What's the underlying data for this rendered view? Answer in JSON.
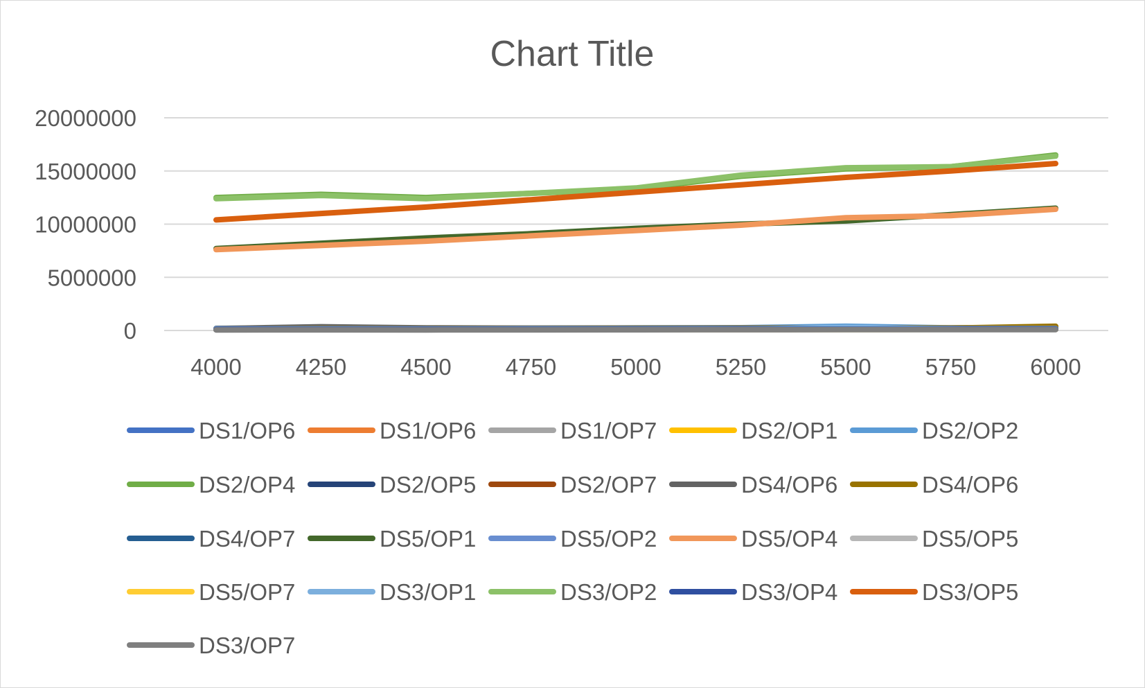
{
  "chart_data": {
    "type": "line",
    "title": "Chart Title",
    "xlabel": "",
    "ylabel": "",
    "x": [
      4000,
      4250,
      4500,
      4750,
      5000,
      5250,
      5500,
      5750,
      6000
    ],
    "x_tick_labels": [
      "4000",
      "4250",
      "4500",
      "4750",
      "5000",
      "5250",
      "5500",
      "5750",
      "6000"
    ],
    "ylim": [
      0,
      20000000
    ],
    "y_ticks": [
      0,
      5000000,
      10000000,
      15000000,
      20000000
    ],
    "y_tick_labels": [
      "0",
      "5000000",
      "10000000",
      "15000000",
      "20000000"
    ],
    "grid": "horizontal",
    "legend_position": "bottom",
    "series": [
      {
        "name": "DS1/OP6",
        "color": "#4472C4",
        "values": [
          150000,
          200000,
          180000,
          170000,
          190000,
          200000,
          210000,
          200000,
          220000
        ]
      },
      {
        "name": "DS1/OP6",
        "color": "#ED7D31",
        "values": [
          100000,
          150000,
          120000,
          130000,
          140000,
          180000,
          150000,
          160000,
          200000
        ]
      },
      {
        "name": "DS1/OP7",
        "color": "#A5A5A5",
        "values": [
          80000,
          90000,
          85000,
          90000,
          95000,
          100000,
          105000,
          110000,
          115000
        ]
      },
      {
        "name": "DS2/OP1",
        "color": "#FFC000",
        "values": [
          120000,
          140000,
          130000,
          135000,
          140000,
          150000,
          160000,
          170000,
          300000
        ]
      },
      {
        "name": "DS2/OP2",
        "color": "#5B9BD5",
        "values": [
          200000,
          250000,
          220000,
          230000,
          240000,
          260000,
          400000,
          250000,
          270000
        ]
      },
      {
        "name": "DS2/OP4",
        "color": "#70AD47",
        "values": [
          12500000,
          12800000,
          12500000,
          12900000,
          13300000,
          14500000,
          15200000,
          15400000,
          16500000
        ]
      },
      {
        "name": "DS2/OP5",
        "color": "#264478",
        "values": [
          150000,
          300000,
          200000,
          180000,
          190000,
          200000,
          210000,
          200000,
          220000
        ]
      },
      {
        "name": "DS2/OP7",
        "color": "#9E480E",
        "values": [
          100000,
          110000,
          105000,
          110000,
          115000,
          120000,
          125000,
          130000,
          135000
        ]
      },
      {
        "name": "DS4/OP6",
        "color": "#636363",
        "values": [
          180000,
          350000,
          250000,
          220000,
          230000,
          240000,
          250000,
          240000,
          260000
        ]
      },
      {
        "name": "DS4/OP6",
        "color": "#997300",
        "values": [
          150000,
          200000,
          180000,
          190000,
          200000,
          210000,
          220000,
          230000,
          400000
        ]
      },
      {
        "name": "DS4/OP7",
        "color": "#255E91",
        "values": [
          100000,
          120000,
          110000,
          115000,
          120000,
          125000,
          130000,
          135000,
          140000
        ]
      },
      {
        "name": "DS5/OP1",
        "color": "#43682B",
        "values": [
          7700000,
          8200000,
          8700000,
          9100000,
          9600000,
          10000000,
          10300000,
          10900000,
          11500000
        ]
      },
      {
        "name": "DS5/OP2",
        "color": "#698ED0",
        "values": [
          150000,
          160000,
          155000,
          160000,
          165000,
          170000,
          175000,
          180000,
          185000
        ]
      },
      {
        "name": "DS5/OP4",
        "color": "#F1975A",
        "values": [
          7600000,
          8000000,
          8400000,
          8900000,
          9400000,
          9900000,
          10600000,
          10800000,
          11400000
        ]
      },
      {
        "name": "DS5/OP5",
        "color": "#B7B7B7",
        "values": [
          90000,
          95000,
          92000,
          95000,
          98000,
          100000,
          102000,
          105000,
          108000
        ]
      },
      {
        "name": "DS5/OP7",
        "color": "#FFCD33",
        "values": [
          80000,
          85000,
          82000,
          85000,
          88000,
          90000,
          92000,
          95000,
          98000
        ]
      },
      {
        "name": "DS3/OP1",
        "color": "#7CAFDD",
        "values": [
          100000,
          110000,
          105000,
          110000,
          115000,
          120000,
          300000,
          130000,
          135000
        ]
      },
      {
        "name": "DS3/OP2",
        "color": "#8CC168",
        "values": [
          12400000,
          12700000,
          12400000,
          12900000,
          13400000,
          14600000,
          15300000,
          15400000,
          16400000
        ]
      },
      {
        "name": "DS3/OP4",
        "color": "#2F4FA0",
        "values": [
          90000,
          100000,
          95000,
          100000,
          105000,
          110000,
          115000,
          120000,
          125000
        ]
      },
      {
        "name": "DS3/OP5",
        "color": "#D95F0E",
        "values": [
          10400000,
          11000000,
          11600000,
          12300000,
          13000000,
          13700000,
          14400000,
          15000000,
          15700000
        ]
      },
      {
        "name": "DS3/OP7",
        "color": "#7F7F7F",
        "values": [
          50000,
          60000,
          55000,
          60000,
          65000,
          70000,
          75000,
          80000,
          85000
        ]
      }
    ]
  }
}
